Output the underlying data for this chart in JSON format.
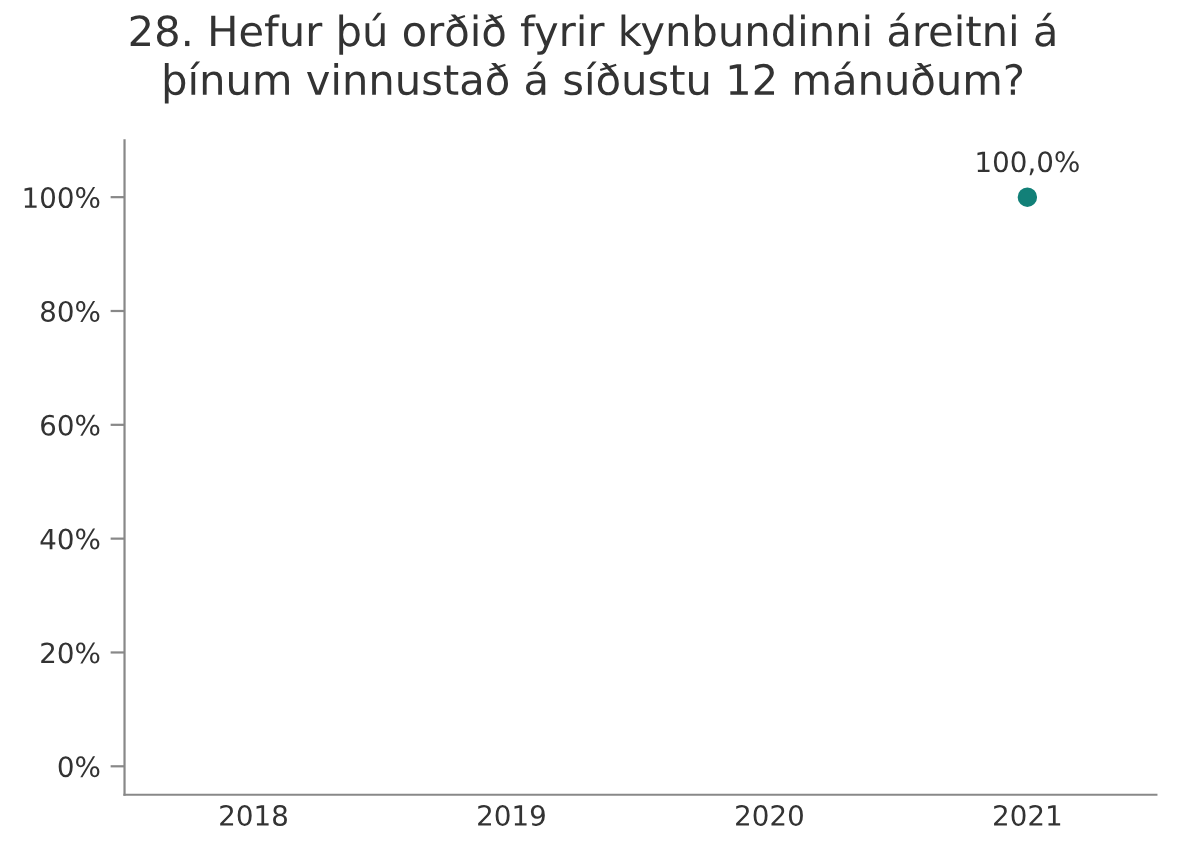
{
  "chart_data": {
    "type": "line",
    "title": "28. Hefur þú orðið fyrir kynbundinni áreitni á\nþínum vinnustað á síðustu 12 mánuðum?",
    "categories": [
      "2018",
      "2019",
      "2020",
      "2021"
    ],
    "series": [
      {
        "color": "#128078",
        "values": [
          null,
          null,
          null,
          100
        ]
      }
    ],
    "value_labels": [
      null,
      null,
      null,
      "100,0%"
    ],
    "ylim": [
      -5,
      110
    ],
    "yticks": [
      {
        "value": 0,
        "label": "0%"
      },
      {
        "value": 20,
        "label": "20%"
      },
      {
        "value": 40,
        "label": "40%"
      },
      {
        "value": 60,
        "label": "60%"
      },
      {
        "value": 80,
        "label": "80%"
      },
      {
        "value": 100,
        "label": "100%"
      }
    ],
    "marker": "circle",
    "grid": false,
    "legend": false
  }
}
